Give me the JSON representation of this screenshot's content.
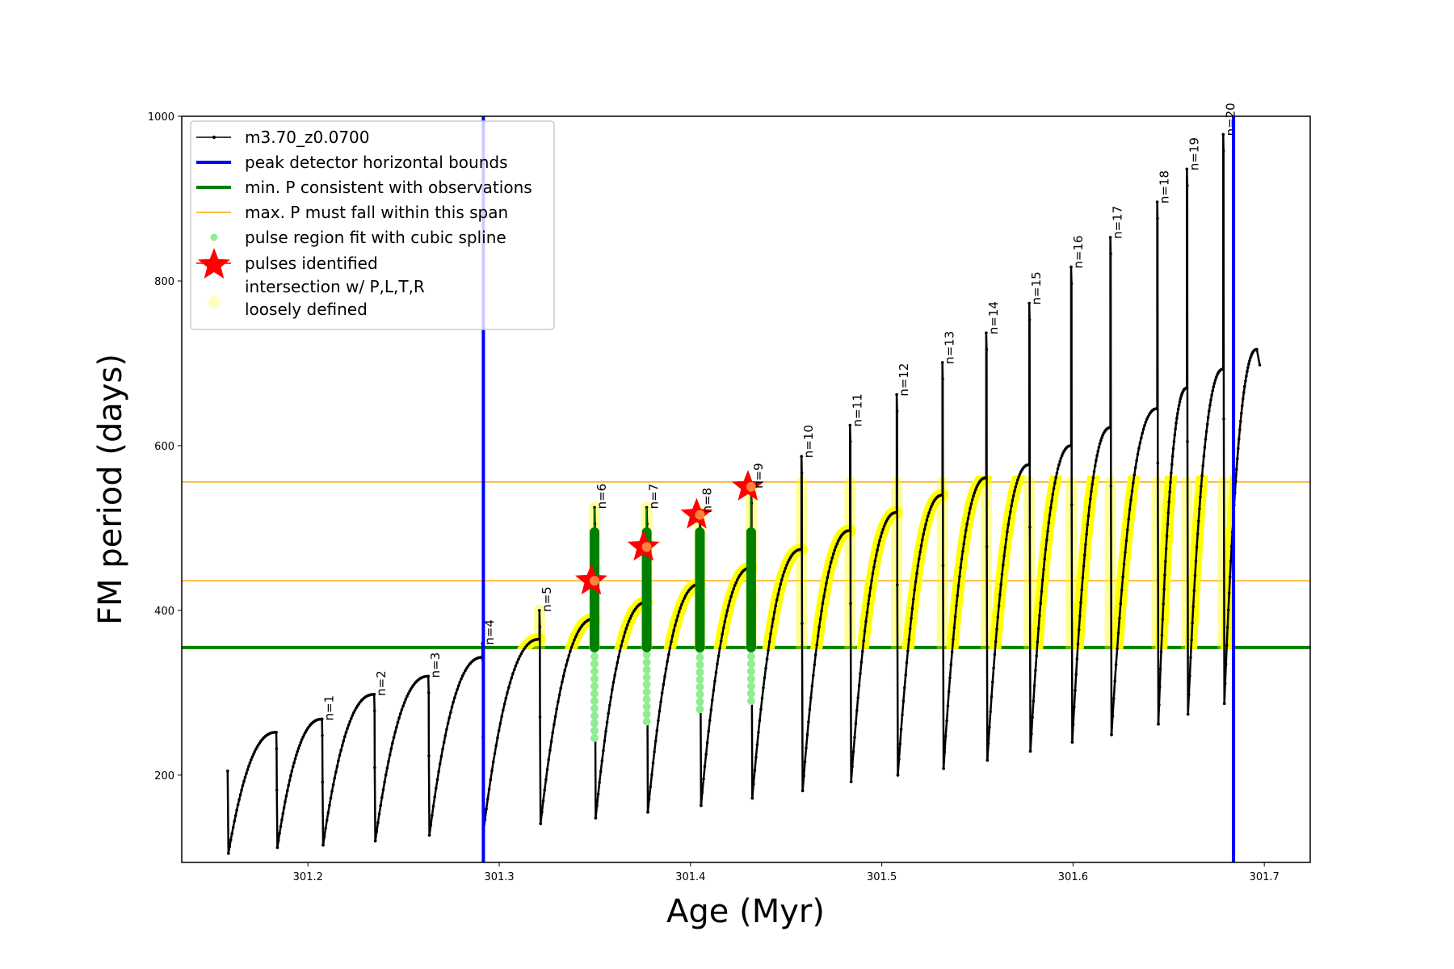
{
  "chart_data": {
    "type": "line",
    "xlabel": "Age (Myr)",
    "ylabel": "FM period (days)",
    "xlim": [
      301.134,
      301.724
    ],
    "ylim": [
      94,
      1000
    ],
    "xticks": [
      "301.2",
      "301.3",
      "301.4",
      "301.5",
      "301.6",
      "301.7"
    ],
    "yticks": [
      "200",
      "400",
      "600",
      "800",
      "1000"
    ],
    "series_name": "m3.70_z0.0700",
    "track_start": {
      "age": 301.158,
      "P_start": 205,
      "min": 105
    },
    "cycles": [
      {
        "label": "",
        "age": 301.1834,
        "max_before": 252,
        "spike_peak": 252,
        "min_after": 112
      },
      {
        "label": "n=1",
        "age": 301.2073,
        "max_before": 268,
        "spike_peak": 268,
        "min_after": 115
      },
      {
        "label": "n=2",
        "age": 301.2346,
        "max_before": 298,
        "spike_peak": 298,
        "min_after": 120
      },
      {
        "label": "n=3",
        "age": 301.2629,
        "max_before": 320,
        "spike_peak": 320,
        "min_after": 127
      },
      {
        "label": "n=4",
        "age": 301.2912,
        "max_before": 343,
        "spike_peak": 360,
        "min_after": 133
      },
      {
        "label": "n=5",
        "age": 301.321,
        "max_before": 365,
        "spike_peak": 400,
        "min_after": 141
      },
      {
        "label": "n=6",
        "age": 301.3498,
        "max_before": 390,
        "spike_peak": 525,
        "min_after": 148
      },
      {
        "label": "n=7",
        "age": 301.3771,
        "max_before": 410,
        "spike_peak": 525,
        "min_after": 155
      },
      {
        "label": "n=8",
        "age": 301.4049,
        "max_before": 432,
        "spike_peak": 520,
        "min_after": 163
      },
      {
        "label": "n=9",
        "age": 301.4317,
        "max_before": 452,
        "spike_peak": 550,
        "min_after": 172
      },
      {
        "label": "n=10",
        "age": 301.458,
        "max_before": 474,
        "spike_peak": 587,
        "min_after": 181
      },
      {
        "label": "n=11",
        "age": 301.4834,
        "max_before": 497,
        "spike_peak": 625,
        "min_after": 192
      },
      {
        "label": "n=12",
        "age": 301.5078,
        "max_before": 519,
        "spike_peak": 662,
        "min_after": 200
      },
      {
        "label": "n=13",
        "age": 301.5317,
        "max_before": 540,
        "spike_peak": 701,
        "min_after": 208
      },
      {
        "label": "n=14",
        "age": 301.5546,
        "max_before": 561,
        "spike_peak": 737,
        "min_after": 218
      },
      {
        "label": "n=15",
        "age": 301.5771,
        "max_before": 577,
        "spike_peak": 773,
        "min_after": 229
      },
      {
        "label": "n=16",
        "age": 301.599,
        "max_before": 600,
        "spike_peak": 817,
        "min_after": 240
      },
      {
        "label": "n=17",
        "age": 301.6195,
        "max_before": 622,
        "spike_peak": 853,
        "min_after": 249
      },
      {
        "label": "n=18",
        "age": 301.644,
        "max_before": 645,
        "spike_peak": 896,
        "min_after": 262
      },
      {
        "label": "n=19",
        "age": 301.6595,
        "max_before": 670,
        "spike_peak": 936,
        "min_after": 274
      },
      {
        "label": "n=20",
        "age": 301.6785,
        "max_before": 693,
        "spike_peak": 978,
        "min_after": 287
      }
    ],
    "track_end": {
      "age": 301.6976,
      "max": 717,
      "end": 698
    },
    "peak_detector_bounds": [
      301.2917,
      301.6839
    ],
    "min_P": 355,
    "max_P_span": [
      436,
      556
    ],
    "spline_fit_pulses": [
      {
        "n": 6,
        "top": 495,
        "low": 245
      },
      {
        "n": 7,
        "top": 495,
        "low": 265
      },
      {
        "n": 8,
        "top": 495,
        "low": 280
      },
      {
        "n": 9,
        "top": 495,
        "low": 290
      }
    ],
    "pulses_identified": [
      {
        "n": 6,
        "age": 301.3498,
        "P": 436
      },
      {
        "n": 7,
        "age": 301.3771,
        "P": 477
      },
      {
        "n": 8,
        "age": 301.4049,
        "P": 516
      },
      {
        "n": 9,
        "age": 301.4317,
        "P": 550
      }
    ],
    "legend": {
      "placement": "upper-left",
      "entries": [
        {
          "label": "m3.70_z0.0700",
          "style": "line-dot",
          "color": "#000000"
        },
        {
          "label": "peak detector horizontal bounds",
          "style": "thick-line",
          "color": "#0000ff"
        },
        {
          "label": "min. P consistent with observations",
          "style": "thick-line",
          "color": "#008000"
        },
        {
          "label": "max. P must fall within this span",
          "style": "thin-line",
          "color": "#ffa500"
        },
        {
          "label": "pulse region fit with cubic spline",
          "style": "dot",
          "color": "#90ee90"
        },
        {
          "label": "pulses identified",
          "style": "star",
          "color": "#ff0000"
        },
        {
          "label": "intersection w/ P,L,T,R",
          "label2": "loosely defined",
          "style": "circle",
          "color": "#ffffc0"
        }
      ]
    },
    "colors": {
      "track": "#000000",
      "bounds": "#0000ff",
      "minP": "#008000",
      "maxP": "#ffa500",
      "intersect": "#ffff00",
      "spline": "#008000",
      "spline_light": "#90ee90",
      "star": "#ff0000"
    }
  }
}
